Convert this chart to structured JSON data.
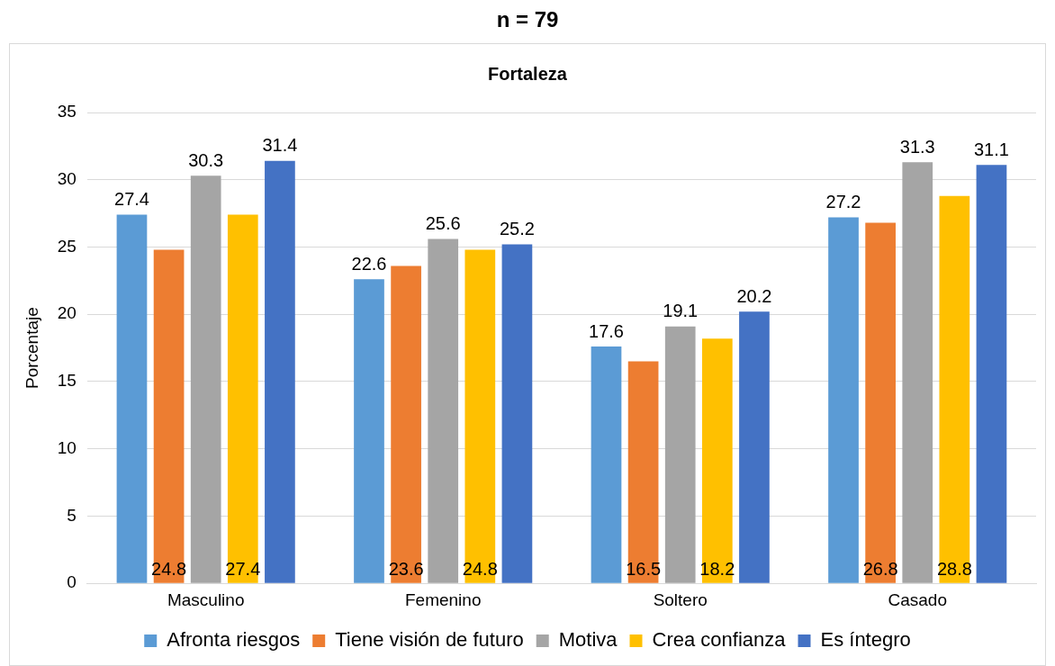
{
  "chart_data": {
    "type": "bar",
    "title": "n = 79",
    "subtitle": "Fortaleza",
    "ylabel": "Porcentaje",
    "categories": [
      "Masculino",
      "Femenino",
      "Soltero",
      "Casado"
    ],
    "series": [
      {
        "name": "Afronta riesgos",
        "color": "#5b9bd5",
        "values": [
          27.4,
          22.6,
          17.6,
          27.2
        ]
      },
      {
        "name": "Tiene visión de futuro",
        "color": "#ed7d31",
        "values": [
          24.8,
          23.6,
          16.5,
          26.8
        ]
      },
      {
        "name": "Motiva",
        "color": "#a5a5a5",
        "values": [
          30.3,
          25.6,
          19.1,
          31.3
        ]
      },
      {
        "name": "Crea confianza",
        "color": "#ffc000",
        "values": [
          27.4,
          24.8,
          18.2,
          28.8
        ]
      },
      {
        "name": "Es íntegro",
        "color": "#4472c4",
        "values": [
          31.4,
          25.2,
          20.2,
          31.1
        ]
      }
    ],
    "ylim": [
      0,
      35
    ],
    "yticks": [
      0,
      5,
      10,
      15,
      20,
      25,
      30,
      35
    ],
    "grid": "y",
    "legend": "bottom",
    "data_labels": true
  }
}
